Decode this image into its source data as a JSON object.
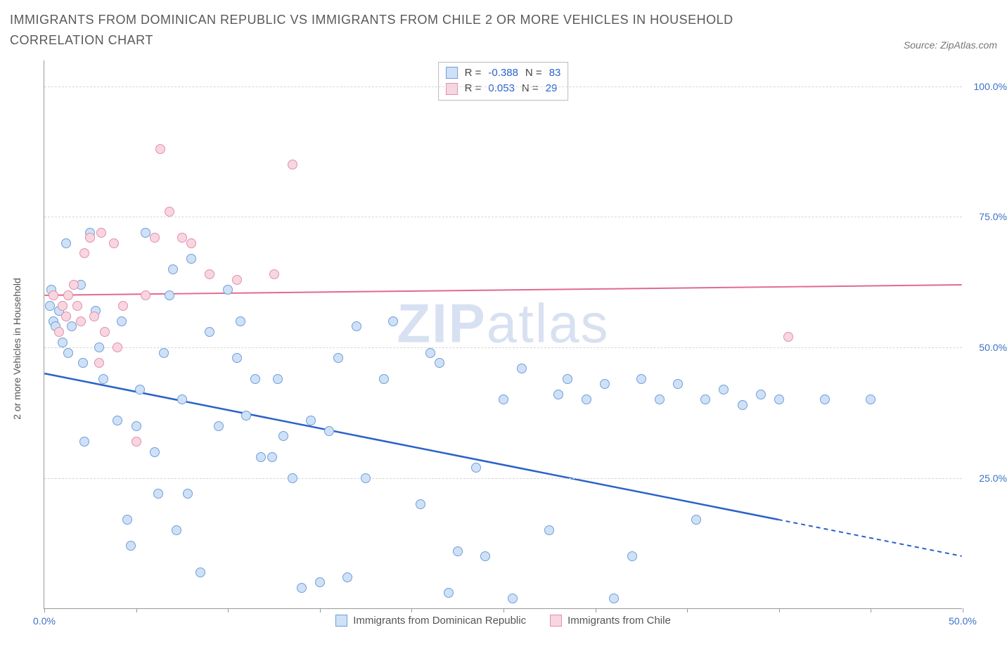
{
  "title": "IMMIGRANTS FROM DOMINICAN REPUBLIC VS IMMIGRANTS FROM CHILE 2 OR MORE VEHICLES IN HOUSEHOLD CORRELATION CHART",
  "source": "Source: ZipAtlas.com",
  "watermark_strong": "ZIP",
  "watermark_light": "atlas",
  "chart": {
    "type": "scatter",
    "y_axis_title": "2 or more Vehicles in Household",
    "x_range": [
      0,
      50
    ],
    "y_range": [
      0,
      105
    ],
    "x_ticks": [
      0,
      5,
      10,
      15,
      20,
      25,
      30,
      35,
      40,
      45,
      50
    ],
    "x_tick_labels": {
      "0": "0.0%",
      "50": "50.0%"
    },
    "y_gridlines": [
      25,
      50,
      75,
      100
    ],
    "y_tick_labels": {
      "25": "25.0%",
      "50": "50.0%",
      "75": "75.0%",
      "100": "100.0%"
    },
    "background_color": "#ffffff",
    "grid_color": "#d6d6d6",
    "axis_color": "#999999",
    "tick_label_color": "#3b71c6",
    "point_radius": 7,
    "series": [
      {
        "name": "Immigrants from Dominican Republic",
        "fill": "#cfe1f7",
        "stroke": "#6f9ed9",
        "trend_color": "#2a62c9",
        "trend_y_at_xmin": 45,
        "trend_y_at_xmax": 10,
        "trend_dashed_from_x": 40,
        "R": "-0.388",
        "N": "83",
        "points": [
          [
            0.3,
            58
          ],
          [
            0.4,
            61
          ],
          [
            0.5,
            55
          ],
          [
            0.6,
            54
          ],
          [
            0.8,
            57
          ],
          [
            1.0,
            51
          ],
          [
            1.2,
            70
          ],
          [
            1.3,
            49
          ],
          [
            1.5,
            54
          ],
          [
            2.0,
            62
          ],
          [
            2.1,
            47
          ],
          [
            2.2,
            32
          ],
          [
            2.5,
            72
          ],
          [
            2.8,
            57
          ],
          [
            3.0,
            50
          ],
          [
            3.2,
            44
          ],
          [
            4.0,
            36
          ],
          [
            4.2,
            55
          ],
          [
            4.5,
            17
          ],
          [
            4.7,
            12
          ],
          [
            5.0,
            35
          ],
          [
            5.2,
            42
          ],
          [
            5.5,
            72
          ],
          [
            6.0,
            30
          ],
          [
            6.2,
            22
          ],
          [
            6.5,
            49
          ],
          [
            6.8,
            60
          ],
          [
            7.0,
            65
          ],
          [
            7.2,
            15
          ],
          [
            7.5,
            40
          ],
          [
            7.8,
            22
          ],
          [
            8.0,
            67
          ],
          [
            8.5,
            7
          ],
          [
            9.0,
            53
          ],
          [
            9.5,
            35
          ],
          [
            10.0,
            61
          ],
          [
            10.5,
            48
          ],
          [
            10.7,
            55
          ],
          [
            11.0,
            37
          ],
          [
            11.5,
            44
          ],
          [
            11.8,
            29
          ],
          [
            12.4,
            29
          ],
          [
            12.7,
            44
          ],
          [
            13.0,
            33
          ],
          [
            13.5,
            25
          ],
          [
            14.0,
            4
          ],
          [
            14.5,
            36
          ],
          [
            15.0,
            5
          ],
          [
            15.5,
            34
          ],
          [
            16.0,
            48
          ],
          [
            16.5,
            6
          ],
          [
            17.0,
            54
          ],
          [
            17.5,
            25
          ],
          [
            18.5,
            44
          ],
          [
            19.0,
            55
          ],
          [
            20.5,
            20
          ],
          [
            21.0,
            49
          ],
          [
            21.5,
            47
          ],
          [
            22.0,
            3
          ],
          [
            22.5,
            11
          ],
          [
            23.5,
            27
          ],
          [
            24.0,
            10
          ],
          [
            25.0,
            40
          ],
          [
            25.5,
            2
          ],
          [
            26.0,
            46
          ],
          [
            27.5,
            15
          ],
          [
            28.0,
            41
          ],
          [
            28.5,
            44
          ],
          [
            29.5,
            40
          ],
          [
            30.5,
            43
          ],
          [
            31.0,
            2
          ],
          [
            32.0,
            10
          ],
          [
            32.5,
            44
          ],
          [
            33.5,
            40
          ],
          [
            34.5,
            43
          ],
          [
            35.5,
            17
          ],
          [
            36.0,
            40
          ],
          [
            37.0,
            42
          ],
          [
            38.0,
            39
          ],
          [
            39.0,
            41
          ],
          [
            40.0,
            40
          ],
          [
            42.5,
            40
          ],
          [
            45.0,
            40
          ]
        ]
      },
      {
        "name": "Immigrants from Chile",
        "fill": "#f7d6e0",
        "stroke": "#e48fab",
        "trend_color": "#e16a8e",
        "trend_y_at_xmin": 60,
        "trend_y_at_xmax": 62,
        "trend_dashed_from_x": null,
        "R": "0.053",
        "N": "29",
        "points": [
          [
            0.5,
            60
          ],
          [
            0.8,
            53
          ],
          [
            1.0,
            58
          ],
          [
            1.2,
            56
          ],
          [
            1.3,
            60
          ],
          [
            1.6,
            62
          ],
          [
            1.8,
            58
          ],
          [
            2.0,
            55
          ],
          [
            2.2,
            68
          ],
          [
            2.5,
            71
          ],
          [
            2.7,
            56
          ],
          [
            3.0,
            47
          ],
          [
            3.1,
            72
          ],
          [
            3.3,
            53
          ],
          [
            3.8,
            70
          ],
          [
            4.0,
            50
          ],
          [
            4.3,
            58
          ],
          [
            5.0,
            32
          ],
          [
            5.5,
            60
          ],
          [
            6.0,
            71
          ],
          [
            6.3,
            88
          ],
          [
            6.8,
            76
          ],
          [
            7.5,
            71
          ],
          [
            8.0,
            70
          ],
          [
            9.0,
            64
          ],
          [
            10.5,
            63
          ],
          [
            12.5,
            64
          ],
          [
            13.5,
            85
          ],
          [
            40.5,
            52
          ]
        ]
      }
    ],
    "legend_labels": [
      "Immigrants from Dominican Republic",
      "Immigrants from Chile"
    ],
    "stats_prefix_R": "R = ",
    "stats_prefix_N": "N = "
  }
}
